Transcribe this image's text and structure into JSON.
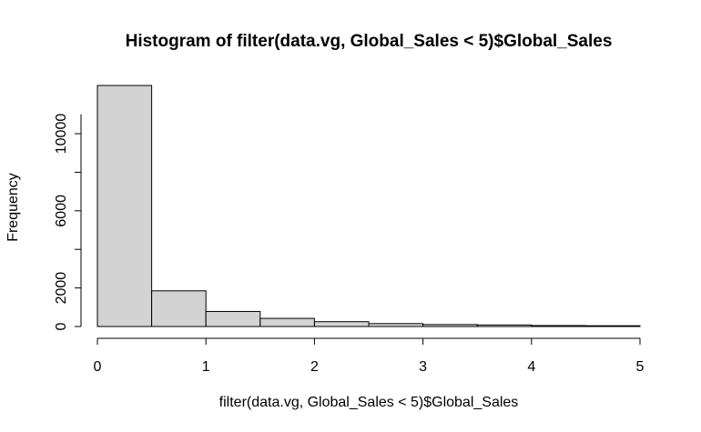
{
  "chart_data": {
    "type": "bar",
    "title": "Histogram of filter(data.vg, Global_Sales < 5)$Global_Sales",
    "xlabel": "filter(data.vg, Global_Sales < 5)$Global_Sales",
    "ylabel": "Frequency",
    "bin_edges": [
      0,
      0.5,
      1,
      1.5,
      2,
      2.5,
      3,
      3.5,
      4,
      4.5,
      5
    ],
    "values": [
      12500,
      1850,
      780,
      420,
      250,
      150,
      100,
      80,
      50,
      40
    ],
    "xlim": [
      0,
      5
    ],
    "ylim": [
      0,
      12500
    ],
    "x_ticks": [
      0,
      1,
      2,
      3,
      4,
      5
    ],
    "x_tick_labels": [
      "0",
      "1",
      "2",
      "3",
      "4",
      "5"
    ],
    "y_ticks": [
      0,
      2000,
      6000,
      10000
    ],
    "y_tick_labels": [
      "0",
      "2000",
      "6000",
      "10000"
    ],
    "bar_fill": "#d3d3d3",
    "bar_stroke": "#000000",
    "grid": false
  }
}
